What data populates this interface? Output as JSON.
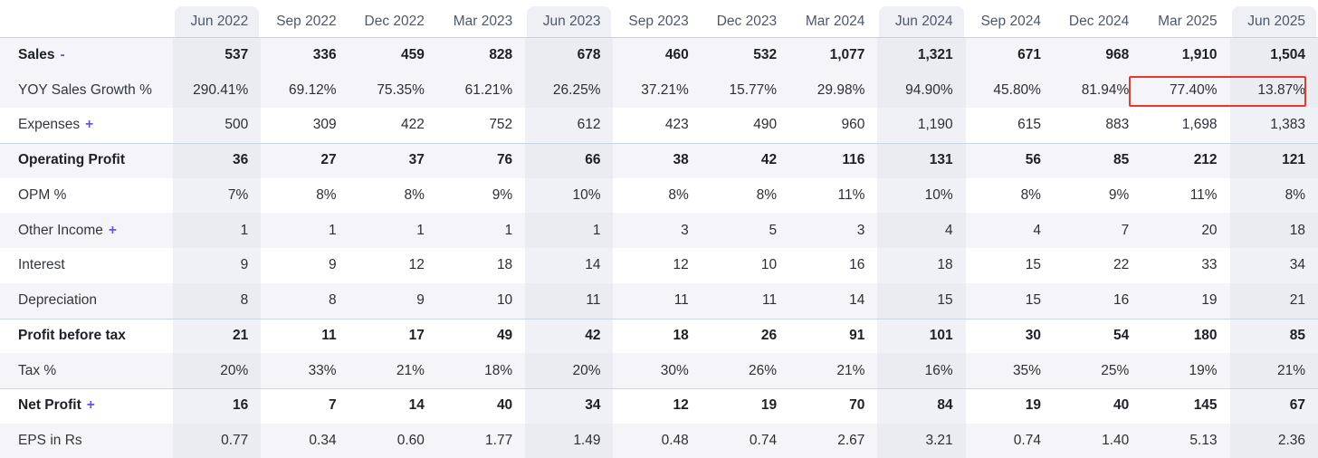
{
  "colors": {
    "accent_purple": "#6159e6",
    "annotation_red": "#e8392f",
    "stripe_row": "#f5f5f9",
    "column_highlight": "#f0f1f6",
    "header_text": "#4d576b"
  },
  "annotation": {
    "type": "red-outline-box",
    "target": "YOY Sales Growth % for Mar 2025 and Jun 2025",
    "values_boxed": [
      "77.40%",
      "13.87%"
    ]
  },
  "table": {
    "corner_label": "",
    "columns": [
      {
        "label": "Jun 2022",
        "highlight": true
      },
      {
        "label": "Sep 2022",
        "highlight": false
      },
      {
        "label": "Dec 2022",
        "highlight": false
      },
      {
        "label": "Mar 2023",
        "highlight": false
      },
      {
        "label": "Jun 2023",
        "highlight": true
      },
      {
        "label": "Sep 2023",
        "highlight": false
      },
      {
        "label": "Dec 2023",
        "highlight": false
      },
      {
        "label": "Mar 2024",
        "highlight": false
      },
      {
        "label": "Jun 2024",
        "highlight": true
      },
      {
        "label": "Sep 2024",
        "highlight": false
      },
      {
        "label": "Dec 2024",
        "highlight": false
      },
      {
        "label": "Mar 2025",
        "highlight": false
      },
      {
        "label": "Jun 2025",
        "highlight": true
      }
    ],
    "rows": [
      {
        "label": "Sales",
        "toggle": "-",
        "bold": true,
        "striped": true,
        "border_top": false,
        "values": [
          "537",
          "336",
          "459",
          "828",
          "678",
          "460",
          "532",
          "1,077",
          "1,321",
          "671",
          "968",
          "1,910",
          "1,504"
        ]
      },
      {
        "label": "YOY Sales Growth %",
        "toggle": "",
        "bold": false,
        "striped": true,
        "border_top": false,
        "values": [
          "290.41%",
          "69.12%",
          "75.35%",
          "61.21%",
          "26.25%",
          "37.21%",
          "15.77%",
          "29.98%",
          "94.90%",
          "45.80%",
          "81.94%",
          "77.40%",
          "13.87%"
        ]
      },
      {
        "label": "Expenses",
        "toggle": "+",
        "bold": false,
        "striped": false,
        "border_top": false,
        "values": [
          "500",
          "309",
          "422",
          "752",
          "612",
          "423",
          "490",
          "960",
          "1,190",
          "615",
          "883",
          "1,698",
          "1,383"
        ]
      },
      {
        "label": "Operating Profit",
        "toggle": "",
        "bold": true,
        "striped": true,
        "border_top": true,
        "values": [
          "36",
          "27",
          "37",
          "76",
          "66",
          "38",
          "42",
          "116",
          "131",
          "56",
          "85",
          "212",
          "121"
        ]
      },
      {
        "label": "OPM %",
        "toggle": "",
        "bold": false,
        "striped": false,
        "border_top": false,
        "values": [
          "7%",
          "8%",
          "8%",
          "9%",
          "10%",
          "8%",
          "8%",
          "11%",
          "10%",
          "8%",
          "9%",
          "11%",
          "8%"
        ]
      },
      {
        "label": "Other Income",
        "toggle": "+",
        "bold": false,
        "striped": true,
        "border_top": false,
        "values": [
          "1",
          "1",
          "1",
          "1",
          "1",
          "3",
          "5",
          "3",
          "4",
          "4",
          "7",
          "20",
          "18"
        ]
      },
      {
        "label": "Interest",
        "toggle": "",
        "bold": false,
        "striped": false,
        "border_top": false,
        "values": [
          "9",
          "9",
          "12",
          "18",
          "14",
          "12",
          "10",
          "16",
          "18",
          "15",
          "22",
          "33",
          "34"
        ]
      },
      {
        "label": "Depreciation",
        "toggle": "",
        "bold": false,
        "striped": true,
        "border_top": false,
        "values": [
          "8",
          "8",
          "9",
          "10",
          "11",
          "11",
          "11",
          "14",
          "15",
          "15",
          "16",
          "19",
          "21"
        ]
      },
      {
        "label": "Profit before tax",
        "toggle": "",
        "bold": true,
        "striped": false,
        "border_top": true,
        "values": [
          "21",
          "11",
          "17",
          "49",
          "42",
          "18",
          "26",
          "91",
          "101",
          "30",
          "54",
          "180",
          "85"
        ]
      },
      {
        "label": "Tax %",
        "toggle": "",
        "bold": false,
        "striped": true,
        "border_top": false,
        "values": [
          "20%",
          "33%",
          "21%",
          "18%",
          "20%",
          "30%",
          "26%",
          "21%",
          "16%",
          "35%",
          "25%",
          "19%",
          "21%"
        ]
      },
      {
        "label": "Net Profit",
        "toggle": "+",
        "bold": true,
        "striped": false,
        "border_top": true,
        "values": [
          "16",
          "7",
          "14",
          "40",
          "34",
          "12",
          "19",
          "70",
          "84",
          "19",
          "40",
          "145",
          "67"
        ]
      },
      {
        "label": "EPS in Rs",
        "toggle": "",
        "bold": false,
        "striped": true,
        "border_top": false,
        "values": [
          "0.77",
          "0.34",
          "0.60",
          "1.77",
          "1.49",
          "0.48",
          "0.74",
          "2.67",
          "3.21",
          "0.74",
          "1.40",
          "5.13",
          "2.36"
        ]
      }
    ]
  }
}
